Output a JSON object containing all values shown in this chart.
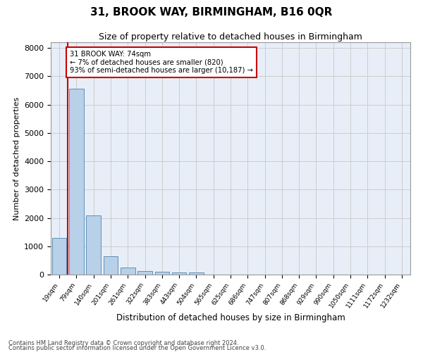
{
  "title": "31, BROOK WAY, BIRMINGHAM, B16 0QR",
  "subtitle": "Size of property relative to detached houses in Birmingham",
  "xlabel": "Distribution of detached houses by size in Birmingham",
  "ylabel": "Number of detached properties",
  "footnote1": "Contains HM Land Registry data © Crown copyright and database right 2024.",
  "footnote2": "Contains public sector information licensed under the Open Government Licence v3.0.",
  "bar_labels": [
    "19sqm",
    "79sqm",
    "140sqm",
    "201sqm",
    "261sqm",
    "322sqm",
    "383sqm",
    "443sqm",
    "504sqm",
    "565sqm",
    "625sqm",
    "686sqm",
    "747sqm",
    "807sqm",
    "868sqm",
    "929sqm",
    "990sqm",
    "1050sqm",
    "1111sqm",
    "1172sqm",
    "1232sqm"
  ],
  "bar_values": [
    1300,
    6550,
    2080,
    650,
    250,
    135,
    100,
    75,
    75,
    0,
    0,
    0,
    0,
    0,
    0,
    0,
    0,
    0,
    0,
    0,
    0
  ],
  "bar_color": "#b8d0e8",
  "bar_edge_color": "#6090b8",
  "highlight_line_color": "#cc0000",
  "annotation_title": "31 BROOK WAY: 74sqm",
  "annotation_line1": "← 7% of detached houses are smaller (820)",
  "annotation_line2": "93% of semi-detached houses are larger (10,187) →",
  "annotation_box_color": "#ffffff",
  "annotation_box_edge": "#cc0000",
  "ylim": [
    0,
    8200
  ],
  "yticks": [
    0,
    1000,
    2000,
    3000,
    4000,
    5000,
    6000,
    7000,
    8000
  ],
  "grid_color": "#cccccc",
  "plot_bg_color": "#e8eef8",
  "title_fontsize": 11,
  "subtitle_fontsize": 9,
  "footnote_fontsize": 6
}
